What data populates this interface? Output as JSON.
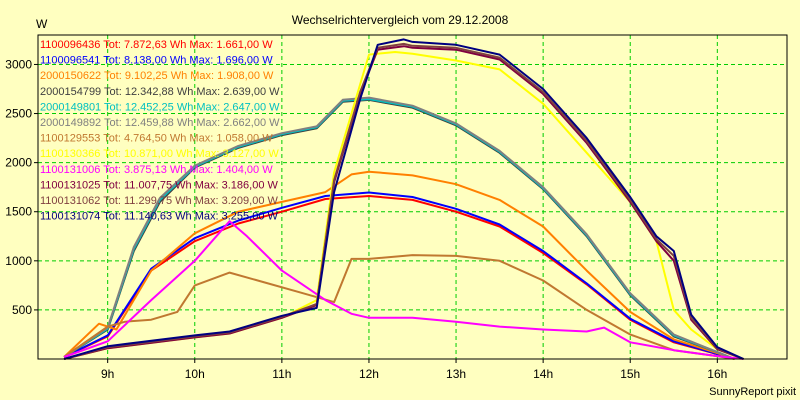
{
  "chart_data": {
    "type": "line",
    "title": "Wechselrichtervergleich vom 29.12.2008",
    "ylabel": "W",
    "xlabel": "",
    "footer": "SunnyReport pixit",
    "x_range": [
      8.2,
      16.8
    ],
    "ylim": [
      0,
      3300
    ],
    "x_ticks": [
      {
        "v": 9,
        "label": "9h"
      },
      {
        "v": 10,
        "label": "10h"
      },
      {
        "v": 11,
        "label": "11h"
      },
      {
        "v": 12,
        "label": "12h"
      },
      {
        "v": 13,
        "label": "13h"
      },
      {
        "v": 14,
        "label": "14h"
      },
      {
        "v": 15,
        "label": "15h"
      },
      {
        "v": 16,
        "label": "16h"
      }
    ],
    "y_ticks": [
      500,
      1000,
      1500,
      2000,
      2500,
      3000
    ],
    "grid": true,
    "background": "#ffffc0",
    "grid_color": "#00cc00",
    "series": [
      {
        "name": "1100096436",
        "legend": "1100096436 Tot: 7.872,63 Wh Max: 1.661,00 W",
        "color": "#ff0000",
        "x": [
          8.5,
          9.0,
          9.5,
          10.0,
          10.5,
          11.0,
          11.5,
          12.0,
          12.5,
          13.0,
          13.5,
          14.0,
          14.5,
          15.0,
          15.5,
          16.0,
          16.2
        ],
        "y": [
          20,
          230,
          900,
          1200,
          1380,
          1500,
          1630,
          1660,
          1620,
          1500,
          1350,
          1080,
          760,
          400,
          170,
          50,
          0
        ]
      },
      {
        "name": "1100096541",
        "legend": "1100096541 Tot: 8.138,00 Wh Max: 1.696,00 W",
        "color": "#0000ff",
        "x": [
          8.5,
          9.0,
          9.5,
          10.0,
          10.5,
          11.0,
          11.5,
          12.0,
          12.5,
          13.0,
          13.5,
          14.0,
          14.5,
          15.0,
          15.5,
          16.0,
          16.2
        ],
        "y": [
          20,
          240,
          920,
          1230,
          1410,
          1540,
          1660,
          1696,
          1650,
          1530,
          1370,
          1100,
          770,
          410,
          180,
          50,
          0
        ]
      },
      {
        "name": "2000150622",
        "legend": "2000150622 Tot: 9.102,25 Wh Max: 1.908,00 W",
        "color": "#ff8000",
        "x": [
          8.5,
          8.9,
          9.1,
          9.5,
          10.0,
          10.5,
          11.0,
          11.5,
          11.8,
          12.0,
          12.5,
          13.0,
          13.5,
          14.0,
          14.5,
          15.0,
          15.5,
          16.0,
          16.2
        ],
        "y": [
          20,
          360,
          300,
          900,
          1280,
          1500,
          1600,
          1700,
          1880,
          1908,
          1870,
          1780,
          1620,
          1350,
          900,
          480,
          200,
          60,
          0
        ]
      },
      {
        "name": "2000154799",
        "legend": "2000154799 Tot: 12.342,88 Wh Max: 2.639,00 W",
        "color": "#404040",
        "x": [
          8.5,
          9.0,
          9.3,
          9.6,
          10.0,
          10.5,
          11.0,
          11.4,
          11.7,
          12.0,
          12.5,
          13.0,
          13.5,
          14.0,
          14.5,
          15.0,
          15.5,
          16.0,
          16.2
        ],
        "y": [
          20,
          300,
          1100,
          1600,
          1950,
          2150,
          2280,
          2350,
          2620,
          2639,
          2560,
          2380,
          2100,
          1730,
          1250,
          650,
          230,
          70,
          0
        ]
      },
      {
        "name": "2000149801",
        "legend": "2000149801 Tot: 12.452,25 Wh Max: 2.647,00 W",
        "color": "#00c0c0",
        "x": [
          8.5,
          9.0,
          9.3,
          9.6,
          10.0,
          10.5,
          11.0,
          11.4,
          11.7,
          12.0,
          12.5,
          13.0,
          13.5,
          14.0,
          14.5,
          15.0,
          15.5,
          16.0,
          16.2
        ],
        "y": [
          20,
          310,
          1120,
          1620,
          1960,
          2160,
          2290,
          2360,
          2630,
          2647,
          2570,
          2390,
          2110,
          1740,
          1260,
          660,
          240,
          70,
          0
        ]
      },
      {
        "name": "2000149892",
        "legend": "2000149892 Tot: 12.459,88 Wh Max: 2.662,00 W",
        "color": "#808080",
        "x": [
          8.5,
          9.0,
          9.3,
          9.6,
          10.0,
          10.5,
          11.0,
          11.4,
          11.7,
          12.0,
          12.5,
          13.0,
          13.5,
          14.0,
          14.5,
          15.0,
          15.5,
          16.0,
          16.2
        ],
        "y": [
          20,
          320,
          1140,
          1640,
          1970,
          2170,
          2300,
          2370,
          2640,
          2662,
          2580,
          2400,
          2120,
          1750,
          1270,
          670,
          250,
          70,
          0
        ]
      },
      {
        "name": "1100129553",
        "legend": "1100129553 Tot: 4.764,50 Wh Max: 1.058,00 W",
        "color": "#c07830",
        "x": [
          8.5,
          9.0,
          9.2,
          9.5,
          9.8,
          10.0,
          10.4,
          10.8,
          11.2,
          11.6,
          11.8,
          12.0,
          12.5,
          13.0,
          13.5,
          14.0,
          14.5,
          15.0,
          15.5,
          16.0,
          16.2
        ],
        "y": [
          20,
          330,
          380,
          400,
          480,
          750,
          880,
          780,
          680,
          580,
          1020,
          1020,
          1058,
          1050,
          1000,
          800,
          500,
          250,
          90,
          30,
          0
        ]
      },
      {
        "name": "1100130366",
        "legend": "1100130366 Tot: 10.871,00 Wh Max: 3.127,00 W",
        "color": "#ffff00",
        "x": [
          8.5,
          9.0,
          10.0,
          10.4,
          11.0,
          11.4,
          11.6,
          11.9,
          12.0,
          12.3,
          12.5,
          13.0,
          13.5,
          14.0,
          14.5,
          15.0,
          15.3,
          15.5,
          15.7,
          16.0,
          16.3
        ],
        "y": [
          0,
          110,
          220,
          260,
          420,
          600,
          1900,
          2800,
          3100,
          3127,
          3110,
          3040,
          2950,
          2600,
          2100,
          1600,
          1200,
          500,
          300,
          100,
          0
        ]
      },
      {
        "name": "1100131006",
        "legend": "1100131006 Tot: 3.875,13 Wh Max: 1.404,00 W",
        "color": "#ff00ff",
        "x": [
          8.5,
          9.0,
          9.5,
          10.0,
          10.4,
          10.6,
          11.0,
          11.5,
          11.8,
          12.0,
          12.5,
          13.0,
          13.5,
          14.0,
          14.5,
          14.7,
          15.0,
          15.5,
          16.0,
          16.3
        ],
        "y": [
          20,
          180,
          600,
          1000,
          1404,
          1250,
          900,
          600,
          460,
          420,
          420,
          380,
          330,
          300,
          280,
          320,
          170,
          90,
          30,
          0
        ]
      },
      {
        "name": "1100131025",
        "legend": "1100131025 Tot: 11.007,75 Wh Max: 3.186,00 W",
        "color": "#800040",
        "x": [
          8.5,
          9.0,
          10.0,
          10.4,
          11.0,
          11.4,
          11.6,
          11.9,
          12.1,
          12.4,
          12.5,
          13.0,
          13.5,
          14.0,
          14.5,
          15.0,
          15.3,
          15.5,
          15.7,
          16.0,
          16.3
        ],
        "y": [
          0,
          110,
          220,
          260,
          420,
          550,
          1800,
          2700,
          3150,
          3186,
          3170,
          3150,
          3050,
          2700,
          2200,
          1600,
          1200,
          1000,
          400,
          100,
          0
        ]
      },
      {
        "name": "1100131062",
        "legend": "1100131062 Tot: 11.299,75 Wh Max: 3.209,00 W",
        "color": "#804040",
        "x": [
          8.5,
          9.0,
          10.0,
          10.4,
          11.0,
          11.4,
          11.6,
          11.9,
          12.1,
          12.4,
          12.5,
          13.0,
          13.5,
          14.0,
          14.5,
          15.0,
          15.3,
          15.5,
          15.7,
          16.0,
          16.3
        ],
        "y": [
          0,
          120,
          230,
          270,
          430,
          560,
          1820,
          2720,
          3170,
          3209,
          3190,
          3170,
          3070,
          2720,
          2220,
          1620,
          1220,
          1050,
          420,
          110,
          0
        ]
      },
      {
        "name": "1100131074",
        "legend": "1100131074 Tot: 11.140,63 Wh Max: 3.255,00 W",
        "color": "#000080",
        "x": [
          8.5,
          9.0,
          10.0,
          10.4,
          11.0,
          11.4,
          11.6,
          11.9,
          12.1,
          12.4,
          12.5,
          13.0,
          13.5,
          14.0,
          14.5,
          15.0,
          15.3,
          15.5,
          15.7,
          16.0,
          16.3
        ],
        "y": [
          0,
          130,
          240,
          280,
          440,
          520,
          1700,
          2650,
          3200,
          3255,
          3230,
          3200,
          3100,
          2750,
          2250,
          1650,
          1250,
          1100,
          450,
          120,
          0
        ]
      }
    ]
  }
}
